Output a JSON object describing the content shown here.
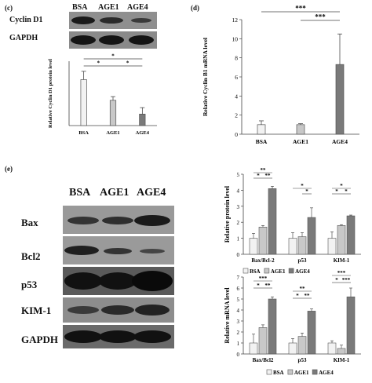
{
  "panels": {
    "c_label": "(c)",
    "d_label": "(d)",
    "e_label": "(e)"
  },
  "blot_c": {
    "lanes": [
      "BSA",
      "AGE1",
      "AGE4"
    ],
    "rows": [
      "Cyclin D1",
      "GAPDH"
    ]
  },
  "blot_e": {
    "lanes": [
      "BSA",
      "AGE1",
      "AGE4"
    ],
    "rows": [
      "Bax",
      "Bcl2",
      "p53",
      "KIM-1",
      "GAPDH"
    ]
  },
  "colors": {
    "bsa": "#f2f2f2",
    "age1": "#c8c8c8",
    "age4": "#7a7a7a",
    "band": "#1b1b1b",
    "membrane": "#8c8c8c"
  },
  "chart_data": [
    {
      "id": "c",
      "type": "bar",
      "categories": [
        "BSA",
        "AGE1",
        "AGE4"
      ],
      "values": [
        1.0,
        0.55,
        0.25
      ],
      "errors": [
        0.18,
        0.08,
        0.14
      ],
      "ylabel": "Relative Cyclin D1 protein level",
      "ylim": [
        0,
        1.4
      ],
      "yticks": [],
      "significance": [
        {
          "from": 0,
          "to": 2,
          "label": "*"
        },
        {
          "from": 0,
          "to": 1,
          "label": "*"
        },
        {
          "from": 1,
          "to": 2,
          "label": "*"
        }
      ]
    },
    {
      "id": "d",
      "type": "bar",
      "categories": [
        "BSA",
        "AGE1",
        "AGE4"
      ],
      "values": [
        1.0,
        1.0,
        7.3
      ],
      "errors": [
        0.4,
        0.1,
        3.2
      ],
      "ylabel": "Relative Cyclin B1 mRNA level",
      "ylim": [
        0,
        12
      ],
      "yticks": [
        "0",
        "2",
        "4",
        "6",
        "8",
        "10",
        "12"
      ],
      "significance": [
        {
          "from": 0,
          "to": 2,
          "label": "***"
        },
        {
          "from": 1,
          "to": 2,
          "label": "***"
        }
      ]
    },
    {
      "id": "e1",
      "type": "bar",
      "categories": [
        "Bax/Bcl-2",
        "p53",
        "KIM-1"
      ],
      "series": [
        {
          "name": "BSA",
          "values": [
            1.0,
            1.0,
            1.0
          ]
        },
        {
          "name": "AGE1",
          "values": [
            1.7,
            1.1,
            1.8
          ]
        },
        {
          "name": "AGE4",
          "values": [
            4.1,
            2.3,
            2.4
          ]
        }
      ],
      "errors": [
        [
          0.3,
          0.35,
          0.4
        ],
        [
          0.1,
          0.25,
          0.05
        ],
        [
          0.15,
          0.6,
          0.05
        ]
      ],
      "ylabel": "Relative protein level",
      "ylim": [
        0,
        5
      ],
      "yticks": [
        "0",
        "1",
        "2",
        "3",
        "4",
        "5"
      ],
      "legend": [
        "BSA",
        "AGE1",
        "AGE4"
      ],
      "significance": [
        {
          "cat": 0,
          "from": 0,
          "to": 2,
          "label": "**"
        },
        {
          "cat": 0,
          "from": 0,
          "to": 1,
          "label": "*"
        },
        {
          "cat": 0,
          "from": 1,
          "to": 2,
          "label": "**"
        },
        {
          "cat": 1,
          "from": 0,
          "to": 2,
          "label": "*"
        },
        {
          "cat": 1,
          "from": 1,
          "to": 2,
          "label": "*"
        },
        {
          "cat": 2,
          "from": 0,
          "to": 2,
          "label": "*"
        },
        {
          "cat": 2,
          "from": 0,
          "to": 1,
          "label": "*"
        },
        {
          "cat": 2,
          "from": 1,
          "to": 2,
          "label": "*"
        }
      ]
    },
    {
      "id": "e2",
      "type": "bar",
      "categories": [
        "Bax/Bcl2",
        "p53",
        "KIM-1"
      ],
      "series": [
        {
          "name": "BSA",
          "values": [
            1.0,
            1.0,
            1.0
          ]
        },
        {
          "name": "AGE1",
          "values": [
            2.4,
            1.6,
            0.5
          ]
        },
        {
          "name": "AGE4",
          "values": [
            5.0,
            3.9,
            5.2
          ]
        }
      ],
      "errors": [
        [
          0.8,
          0.4,
          0.2
        ],
        [
          0.25,
          0.3,
          0.3
        ],
        [
          0.2,
          0.2,
          0.8
        ]
      ],
      "ylabel": "Relative mRNA level",
      "ylim": [
        0,
        7
      ],
      "yticks": [
        "0",
        "1",
        "2",
        "3",
        "4",
        "5",
        "6",
        "7"
      ],
      "legend": [
        "BSA",
        "AGE1",
        "AGE4"
      ],
      "significance": [
        {
          "cat": 0,
          "from": 0,
          "to": 2,
          "label": "***"
        },
        {
          "cat": 0,
          "from": 0,
          "to": 1,
          "label": "*"
        },
        {
          "cat": 0,
          "from": 1,
          "to": 2,
          "label": "**"
        },
        {
          "cat": 1,
          "from": 0,
          "to": 2,
          "label": "**"
        },
        {
          "cat": 1,
          "from": 0,
          "to": 1,
          "label": "*"
        },
        {
          "cat": 1,
          "from": 1,
          "to": 2,
          "label": "**"
        },
        {
          "cat": 2,
          "from": 0,
          "to": 2,
          "label": "***"
        },
        {
          "cat": 2,
          "from": 0,
          "to": 1,
          "label": "*"
        },
        {
          "cat": 2,
          "from": 1,
          "to": 2,
          "label": "***"
        }
      ]
    }
  ]
}
